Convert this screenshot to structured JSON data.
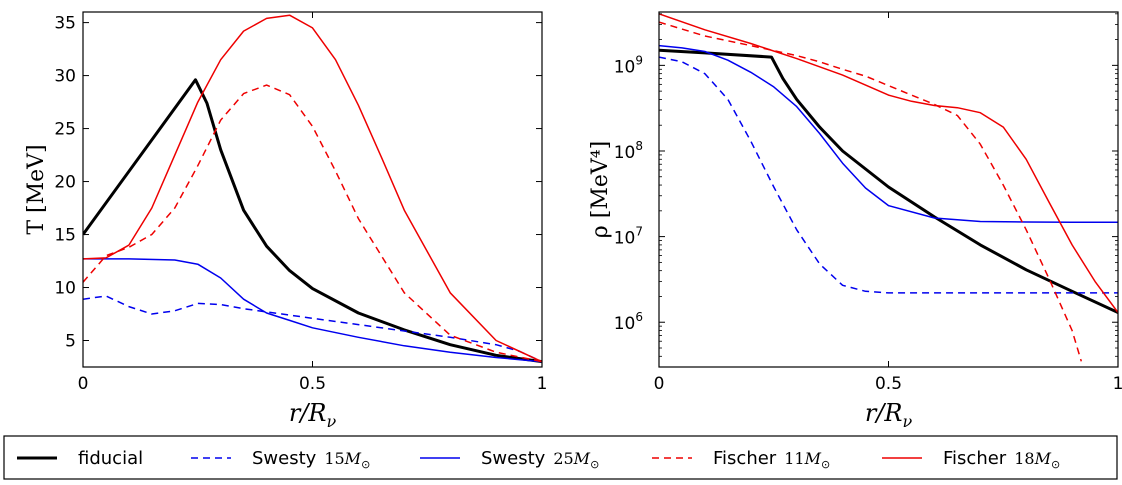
{
  "chart_data": [
    {
      "type": "line",
      "ylabel": "T  [MeV]",
      "xlabel": "r/R_ν",
      "xlim": [
        0,
        1
      ],
      "ylim": [
        2.5,
        36
      ],
      "y_scale": "linear",
      "x_ticks": [
        {
          "v": 0,
          "label": "0"
        },
        {
          "v": 0.5,
          "label": "0.5"
        },
        {
          "v": 1,
          "label": "1"
        }
      ],
      "y_ticks": [
        {
          "v": 5,
          "label": "5"
        },
        {
          "v": 10,
          "label": "10"
        },
        {
          "v": 15,
          "label": "15"
        },
        {
          "v": 20,
          "label": "20"
        },
        {
          "v": 25,
          "label": "25"
        },
        {
          "v": 30,
          "label": "30"
        },
        {
          "v": 35,
          "label": "35"
        }
      ],
      "series": [
        {
          "key": "fiducial",
          "color": "#000000",
          "dash": "solid",
          "width": 3,
          "x": [
            0,
            0.245,
            0.27,
            0.3,
            0.35,
            0.4,
            0.45,
            0.5,
            0.6,
            0.7,
            0.8,
            0.9,
            1.0
          ],
          "y": [
            15.0,
            29.6,
            27.4,
            23.0,
            17.3,
            13.9,
            11.6,
            9.9,
            7.6,
            6.0,
            4.6,
            3.6,
            3.0
          ]
        },
        {
          "key": "swesty15",
          "color": "#0000ee",
          "dash": "dashed",
          "width": 1.5,
          "x": [
            0,
            0.05,
            0.1,
            0.15,
            0.2,
            0.25,
            0.3,
            0.35,
            0.4,
            0.5,
            0.6,
            0.7,
            0.8,
            0.9,
            0.95,
            1.0
          ],
          "y": [
            8.9,
            9.2,
            8.2,
            7.5,
            7.8,
            8.5,
            8.4,
            8.0,
            7.7,
            7.1,
            6.5,
            5.9,
            5.3,
            4.6,
            4.0,
            3.0
          ]
        },
        {
          "key": "swesty25",
          "color": "#0000ee",
          "dash": "solid",
          "width": 1.5,
          "x": [
            0,
            0.1,
            0.2,
            0.25,
            0.3,
            0.35,
            0.4,
            0.45,
            0.5,
            0.6,
            0.7,
            0.8,
            0.9,
            1.0
          ],
          "y": [
            12.7,
            12.7,
            12.6,
            12.2,
            10.9,
            8.9,
            7.6,
            6.9,
            6.2,
            5.3,
            4.5,
            3.9,
            3.4,
            3.0
          ]
        },
        {
          "key": "fischer11",
          "color": "#ee0000",
          "dash": "dashed",
          "width": 1.5,
          "x": [
            0,
            0.05,
            0.1,
            0.15,
            0.2,
            0.25,
            0.3,
            0.35,
            0.4,
            0.45,
            0.5,
            0.55,
            0.6,
            0.7,
            0.8,
            0.9,
            1.0
          ],
          "y": [
            10.5,
            13.0,
            13.8,
            15.0,
            17.5,
            21.5,
            25.8,
            28.3,
            29.1,
            28.2,
            25.2,
            21.0,
            16.5,
            9.5,
            5.5,
            3.9,
            3.0
          ]
        },
        {
          "key": "fischer18",
          "color": "#ee0000",
          "dash": "solid",
          "width": 1.5,
          "x": [
            0,
            0.05,
            0.1,
            0.15,
            0.2,
            0.25,
            0.3,
            0.35,
            0.4,
            0.45,
            0.5,
            0.55,
            0.6,
            0.65,
            0.7,
            0.8,
            0.9,
            1.0
          ],
          "y": [
            12.7,
            12.8,
            14.0,
            17.5,
            22.5,
            27.5,
            31.5,
            34.2,
            35.4,
            35.7,
            34.5,
            31.5,
            27.2,
            22.3,
            17.3,
            9.5,
            5.0,
            3.0
          ]
        }
      ]
    },
    {
      "type": "line",
      "ylabel": "ρ  [MeV⁴]",
      "xlabel": "r/R_ν",
      "xlim": [
        0,
        1
      ],
      "ylim": [
        300000,
        4200000000
      ],
      "y_scale": "log",
      "x_ticks": [
        {
          "v": 0,
          "label": "0"
        },
        {
          "v": 0.5,
          "label": "0.5"
        },
        {
          "v": 1,
          "label": "1"
        }
      ],
      "y_ticks": [
        {
          "v": 1000000,
          "base": "10",
          "exp": "6"
        },
        {
          "v": 10000000,
          "base": "10",
          "exp": "7"
        },
        {
          "v": 100000000,
          "base": "10",
          "exp": "8"
        },
        {
          "v": 1000000000,
          "base": "10",
          "exp": "9"
        }
      ],
      "series": [
        {
          "key": "fiducial",
          "color": "#000000",
          "dash": "solid",
          "width": 3,
          "x": [
            0,
            0.1,
            0.245,
            0.27,
            0.3,
            0.35,
            0.4,
            0.5,
            0.6,
            0.7,
            0.8,
            0.9,
            1.0
          ],
          "y": [
            1500000000,
            1400000000,
            1250000000,
            700000000,
            400000000,
            190000000,
            100000000,
            38000000,
            17000000,
            8000000,
            4100000,
            2300000,
            1300000
          ]
        },
        {
          "key": "swesty15",
          "color": "#0000ee",
          "dash": "dashed",
          "width": 1.5,
          "x": [
            0,
            0.05,
            0.1,
            0.15,
            0.2,
            0.25,
            0.3,
            0.35,
            0.4,
            0.45,
            0.5,
            0.6,
            0.7,
            0.8,
            0.9,
            1.0
          ],
          "y": [
            1250000000,
            1100000000,
            800000000,
            400000000,
            130000000,
            38000000,
            12000000,
            4800000,
            2700000,
            2300000,
            2200000,
            2200000,
            2200000,
            2200000,
            2200000,
            2200000
          ]
        },
        {
          "key": "swesty25",
          "color": "#0000ee",
          "dash": "solid",
          "width": 1.5,
          "x": [
            0,
            0.05,
            0.1,
            0.15,
            0.2,
            0.25,
            0.3,
            0.35,
            0.4,
            0.45,
            0.5,
            0.6,
            0.7,
            0.8,
            0.9,
            1.0
          ],
          "y": [
            1700000000,
            1600000000,
            1450000000,
            1150000000,
            830000000,
            560000000,
            330000000,
            160000000,
            72000000,
            37000000,
            23000000,
            16500000,
            15000000,
            14800000,
            14700000,
            14700000
          ]
        },
        {
          "key": "fischer11",
          "color": "#ee0000",
          "dash": "dashed",
          "width": 1.5,
          "x": [
            0,
            0.1,
            0.2,
            0.3,
            0.35,
            0.4,
            0.45,
            0.5,
            0.55,
            0.6,
            0.65,
            0.7,
            0.75,
            0.8,
            0.85,
            0.9,
            0.92
          ],
          "y": [
            3200000000,
            2200000000,
            1700000000,
            1300000000,
            1100000000,
            900000000,
            750000000,
            580000000,
            450000000,
            350000000,
            260000000,
            120000000,
            40000000,
            12000000,
            3200000,
            800000,
            350000
          ]
        },
        {
          "key": "fischer18",
          "color": "#ee0000",
          "dash": "solid",
          "width": 1.5,
          "x": [
            0,
            0.1,
            0.2,
            0.3,
            0.4,
            0.5,
            0.55,
            0.6,
            0.65,
            0.7,
            0.75,
            0.8,
            0.85,
            0.9,
            0.95,
            1.0
          ],
          "y": [
            4000000000,
            2600000000,
            1800000000,
            1200000000,
            770000000,
            450000000,
            380000000,
            340000000,
            320000000,
            280000000,
            190000000,
            80000000,
            25000000,
            8000000,
            3000000,
            1300000
          ]
        }
      ]
    }
  ],
  "legend": [
    {
      "key": "fiducial",
      "label": "fiducial",
      "math": "",
      "color": "#000000",
      "dash": "solid",
      "width": 3
    },
    {
      "key": "swesty15",
      "label": "Swesty",
      "math": "15",
      "color": "#0000ee",
      "dash": "dashed",
      "width": 1.5
    },
    {
      "key": "swesty25",
      "label": "Swesty",
      "math": "25",
      "color": "#0000ee",
      "dash": "solid",
      "width": 1.5
    },
    {
      "key": "fischer11",
      "label": "Fischer",
      "math": "11",
      "color": "#ee0000",
      "dash": "dashed",
      "width": 1.5
    },
    {
      "key": "fischer18",
      "label": "Fischer",
      "math": "18",
      "color": "#ee0000",
      "dash": "solid",
      "width": 1.5
    }
  ]
}
